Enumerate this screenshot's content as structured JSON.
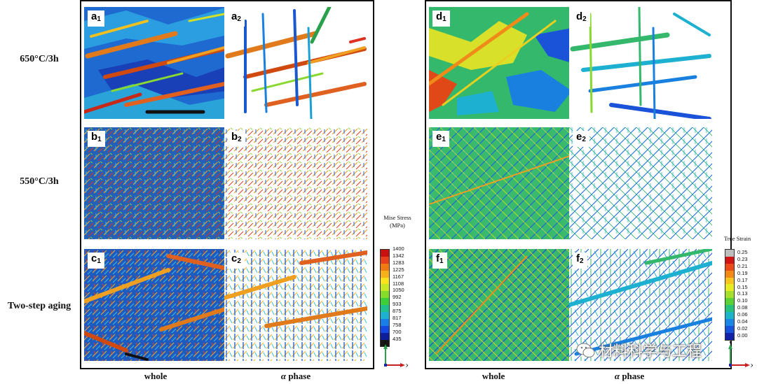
{
  "row_labels": [
    "650°C/3h",
    "550°C/3h",
    "Two-step aging"
  ],
  "column_labels": {
    "whole": "whole",
    "alpha_symbol": "α",
    "alpha_word": "phase"
  },
  "panels": {
    "a1": {
      "letter": "a",
      "sub": "1"
    },
    "a2": {
      "letter": "a",
      "sub": "2"
    },
    "b1": {
      "letter": "b",
      "sub": "1"
    },
    "b2": {
      "letter": "b",
      "sub": "2"
    },
    "c1": {
      "letter": "c",
      "sub": "1"
    },
    "c2": {
      "letter": "c",
      "sub": "2"
    },
    "d1": {
      "letter": "d",
      "sub": "1"
    },
    "d2": {
      "letter": "d",
      "sub": "2"
    },
    "e1": {
      "letter": "e",
      "sub": "1"
    },
    "e2": {
      "letter": "e",
      "sub": "2"
    },
    "f1": {
      "letter": "f",
      "sub": "1"
    },
    "f2": {
      "letter": "f",
      "sub": "2"
    }
  },
  "stress_legend": {
    "title_line1": "Mise Stress",
    "title_line2": "(MPa)",
    "values": [
      "1400",
      "1342",
      "1283",
      "1225",
      "1167",
      "1108",
      "1050",
      "992",
      "933",
      "875",
      "817",
      "758",
      "700",
      "435"
    ],
    "colors": [
      "#c81010",
      "#e8401a",
      "#f07a12",
      "#f6b01a",
      "#f8e31e",
      "#c8e825",
      "#86dc2a",
      "#3ccf3a",
      "#20c08c",
      "#1eb0d0",
      "#1a7ee8",
      "#1448e0",
      "#0e1e9a",
      "#161616"
    ]
  },
  "strain_legend": {
    "title": "True Strain",
    "values": [
      "0.25",
      "0.23",
      "0.21",
      "0.19",
      "0.17",
      "0.15",
      "0.13",
      "0.10",
      "0.08",
      "0.06",
      "0.04",
      "0.02",
      "0.00"
    ],
    "colors": [
      "#bdbdbd",
      "#d21414",
      "#ec4a18",
      "#f38a16",
      "#f7c41c",
      "#e6eb22",
      "#a6e02a",
      "#5ad236",
      "#26c27c",
      "#1eb4c8",
      "#1a86e6",
      "#1652dc",
      "#1222a8"
    ]
  },
  "axes": {
    "y": "Y",
    "x": "X"
  },
  "watermark": "材料科学与工程",
  "colors": {
    "stress_background": "#1e64c8",
    "strain_background": "#34b86c",
    "alpha_background": "#ffffff"
  }
}
